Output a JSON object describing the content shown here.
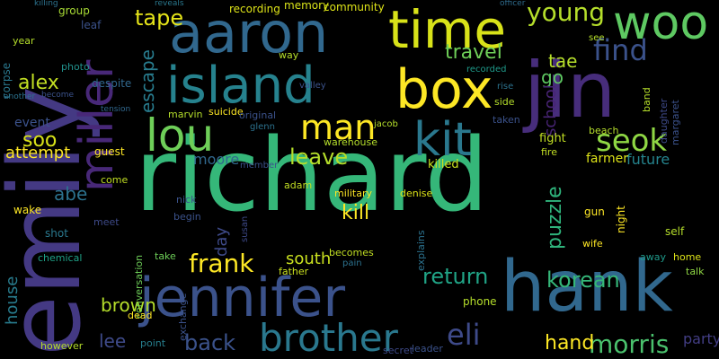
{
  "words": [
    {
      "text": "richard",
      "color": "#35b779"
    },
    {
      "text": "emily",
      "color": "#443983"
    },
    {
      "text": "hank",
      "color": "#31688e"
    },
    {
      "text": "jennifer",
      "color": "#3b528b"
    },
    {
      "text": "jin",
      "color": "#472d7b"
    },
    {
      "text": "aaron",
      "color": "#31688e"
    },
    {
      "text": "island",
      "color": "#26828e"
    },
    {
      "text": "box",
      "color": "#fde725"
    },
    {
      "text": "time",
      "color": "#d8e219"
    },
    {
      "text": "woo",
      "color": "#5ec962"
    },
    {
      "text": "kit",
      "color": "#2a788e"
    },
    {
      "text": "lou",
      "color": "#6ece58"
    },
    {
      "text": "miller",
      "color": "#482878"
    },
    {
      "text": "brother",
      "color": "#2a788e"
    },
    {
      "text": "man",
      "color": "#fde725"
    },
    {
      "text": "seok",
      "color": "#8fd744"
    },
    {
      "text": "find",
      "color": "#3b528b"
    },
    {
      "text": "young",
      "color": "#b5de2b"
    },
    {
      "text": "tape",
      "color": "#e5e419"
    },
    {
      "text": "eli",
      "color": "#3e4a89"
    },
    {
      "text": "morris",
      "color": "#4ac16d"
    },
    {
      "text": "frank",
      "color": "#fde725"
    },
    {
      "text": "return",
      "color": "#20a486"
    },
    {
      "text": "korean",
      "color": "#35b779"
    },
    {
      "text": "back",
      "color": "#3b528b"
    },
    {
      "text": "hand",
      "color": "#fde725"
    },
    {
      "text": "leave",
      "color": "#b5de2b"
    },
    {
      "text": "alex",
      "color": "#c2df23"
    },
    {
      "text": "escape",
      "color": "#287c8e"
    },
    {
      "text": "travel",
      "color": "#6ece58"
    },
    {
      "text": "tae",
      "color": "#b5de2b"
    },
    {
      "text": "go",
      "color": "#5ec962"
    },
    {
      "text": "soo",
      "color": "#d8e219"
    },
    {
      "text": "abe",
      "color": "#2c728e"
    },
    {
      "text": "puzzle",
      "color": "#2fb47c"
    },
    {
      "text": "kill",
      "color": "#fde725"
    },
    {
      "text": "brown",
      "color": "#b5de2b"
    },
    {
      "text": "lee",
      "color": "#3e4a89"
    },
    {
      "text": "south",
      "color": "#cae11f"
    },
    {
      "text": "attempt",
      "color": "#fde725"
    },
    {
      "text": "house",
      "color": "#287c8e"
    },
    {
      "text": "moore",
      "color": "#31688e"
    },
    {
      "text": "school",
      "color": "#482475"
    },
    {
      "text": "event",
      "color": "#3b528b"
    },
    {
      "text": "party",
      "color": "#433e85"
    },
    {
      "text": "future",
      "color": "#25848e"
    },
    {
      "text": "farmer",
      "color": "#dde318"
    },
    {
      "text": "day",
      "color": "#3e4a89"
    },
    {
      "text": "killed",
      "color": "#cae11f"
    },
    {
      "text": "fight",
      "color": "#c2df23"
    },
    {
      "text": "memory",
      "color": "#d8e219"
    },
    {
      "text": "community",
      "color": "#dde318"
    },
    {
      "text": "recording",
      "color": "#dde318"
    },
    {
      "text": "group",
      "color": "#a8db34"
    },
    {
      "text": "leaf",
      "color": "#3b528b"
    },
    {
      "text": "killing",
      "color": "#2c728e"
    },
    {
      "text": "reveals",
      "color": "#2a788e"
    },
    {
      "text": "officer",
      "color": "#2f6c8e"
    },
    {
      "text": "corpse",
      "color": "#2a788e"
    },
    {
      "text": "year",
      "color": "#b5de2b"
    },
    {
      "text": "photo",
      "color": "#21918c"
    },
    {
      "text": "another",
      "color": "#2c728e"
    },
    {
      "text": "become",
      "color": "#3b528b"
    },
    {
      "text": "tension",
      "color": "#31688e"
    },
    {
      "text": "despite",
      "color": "#31688e"
    },
    {
      "text": "suicide",
      "color": "#fde725"
    },
    {
      "text": "valley",
      "color": "#3b528b"
    },
    {
      "text": "recorded",
      "color": "#1f9a8a"
    },
    {
      "text": "explains",
      "color": "#2c728e"
    },
    {
      "text": "guest",
      "color": "#fde725"
    },
    {
      "text": "come",
      "color": "#c2df23"
    },
    {
      "text": "adam",
      "color": "#c2df23"
    },
    {
      "text": "warehouse",
      "color": "#b5de2b"
    },
    {
      "text": "denise",
      "color": "#dde318"
    },
    {
      "text": "military",
      "color": "#fde725"
    },
    {
      "text": "wake",
      "color": "#fde725"
    },
    {
      "text": "meet",
      "color": "#3e4a89"
    },
    {
      "text": "shot",
      "color": "#2a788e"
    },
    {
      "text": "chemical",
      "color": "#1fa187"
    },
    {
      "text": "however",
      "color": "#b5de2b"
    },
    {
      "text": "point",
      "color": "#277f8e"
    },
    {
      "text": "father",
      "color": "#cae11f"
    },
    {
      "text": "pain",
      "color": "#2c728e"
    },
    {
      "text": "becomes",
      "color": "#c2df23"
    },
    {
      "text": "secret",
      "color": "#3e4a89"
    },
    {
      "text": "leader",
      "color": "#3b528b"
    },
    {
      "text": "phone",
      "color": "#b5de2b"
    },
    {
      "text": "wife",
      "color": "#fde725"
    },
    {
      "text": "away",
      "color": "#1f9a8a"
    },
    {
      "text": "home",
      "color": "#dde318"
    },
    {
      "text": "talk",
      "color": "#8fd744"
    },
    {
      "text": "gun",
      "color": "#fde725"
    },
    {
      "text": "night",
      "color": "#fde725"
    },
    {
      "text": "self",
      "color": "#b5de2b"
    },
    {
      "text": "daughter",
      "color": "#3e4a89"
    },
    {
      "text": "margaret",
      "color": "#3b528b"
    },
    {
      "text": "taken",
      "color": "#3b528b"
    },
    {
      "text": "side",
      "color": "#b5de2b"
    },
    {
      "text": "rise",
      "color": "#2c728e"
    },
    {
      "text": "band",
      "color": "#b5de2b"
    },
    {
      "text": "fire",
      "color": "#c2df23"
    },
    {
      "text": "nick",
      "color": "#3b528b"
    },
    {
      "text": "begin",
      "color": "#3b528b"
    },
    {
      "text": "susan",
      "color": "#3e4a89"
    },
    {
      "text": "exchange",
      "color": "#3b528b"
    },
    {
      "text": "conversation",
      "color": "#6ece58"
    },
    {
      "text": "take",
      "color": "#6ece58"
    },
    {
      "text": "dead",
      "color": "#fde725"
    },
    {
      "text": "marvin",
      "color": "#b5de2b"
    },
    {
      "text": "glenn",
      "color": "#2c728e"
    },
    {
      "text": "member",
      "color": "#3b528b"
    },
    {
      "text": "original",
      "color": "#3b528b"
    },
    {
      "text": "way",
      "color": "#b5de2b"
    },
    {
      "text": "jacob",
      "color": "#b5de2b"
    },
    {
      "text": "see",
      "color": "#b5de2b"
    },
    {
      "text": "beach",
      "color": "#b5de2b"
    }
  ]
}
